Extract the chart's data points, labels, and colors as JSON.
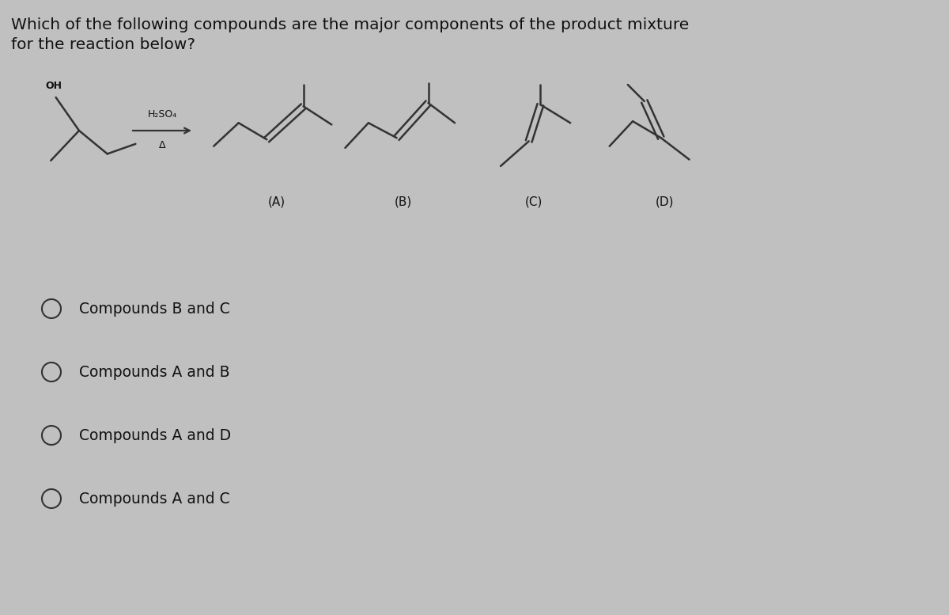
{
  "title_line1": "Which of the following compounds are the major components of the product mixture",
  "title_line2": "for the reaction below?",
  "reagent_label1": "H₂SO₄",
  "reagent_label2": "Δ",
  "compound_labels": [
    "(A)",
    "(B)",
    "(C)",
    "(D)"
  ],
  "answer_options": [
    "Compounds B and C",
    "Compounds A and B",
    "Compounds A and D",
    "Compounds A and C"
  ],
  "background_color": "#c0c0c0",
  "text_color": "#111111",
  "mol_color": "#333333",
  "title_fontsize": 14.5,
  "label_fontsize": 11,
  "answer_fontsize": 13.5,
  "mol_lw": 1.8
}
